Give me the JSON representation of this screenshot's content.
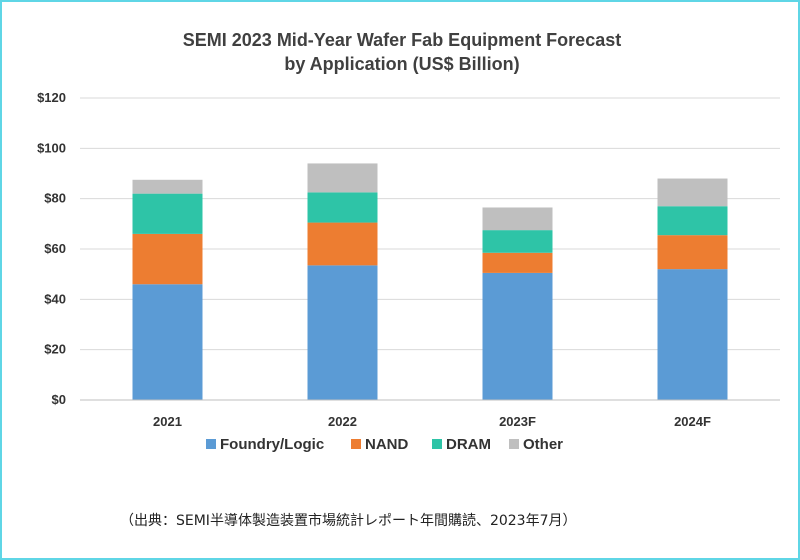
{
  "chart_data": {
    "type": "bar",
    "stacked": true,
    "title": "SEMI 2023 Mid-Year Wafer Fab Equipment Forecast",
    "subtitle": "by Application (US$ Billion)",
    "categories": [
      "2021",
      "2022",
      "2023F",
      "2024F"
    ],
    "series": [
      {
        "name": "Foundry/Logic",
        "color": "#5b9bd5",
        "values": [
          46,
          53.5,
          50.5,
          52
        ]
      },
      {
        "name": "NAND",
        "color": "#ed7d31",
        "values": [
          20,
          17,
          8,
          13.5
        ]
      },
      {
        "name": "DRAM",
        "color": "#2ec4a7",
        "values": [
          16,
          12,
          9,
          11.5
        ]
      },
      {
        "name": "Other",
        "color": "#bfbfbf",
        "values": [
          5.5,
          11.5,
          9,
          11
        ]
      }
    ],
    "ylim": [
      0,
      120
    ],
    "yticks": [
      0,
      20,
      40,
      60,
      80,
      100,
      120
    ],
    "ytick_labels": [
      "$0",
      "$20",
      "$40",
      "$60",
      "$80",
      "$100",
      "$120"
    ],
    "grid": true,
    "legend_position": "bottom"
  },
  "source_note": "（出典：SEMI半導体製造装置市場統計レポート年間購読、2023年7月）"
}
